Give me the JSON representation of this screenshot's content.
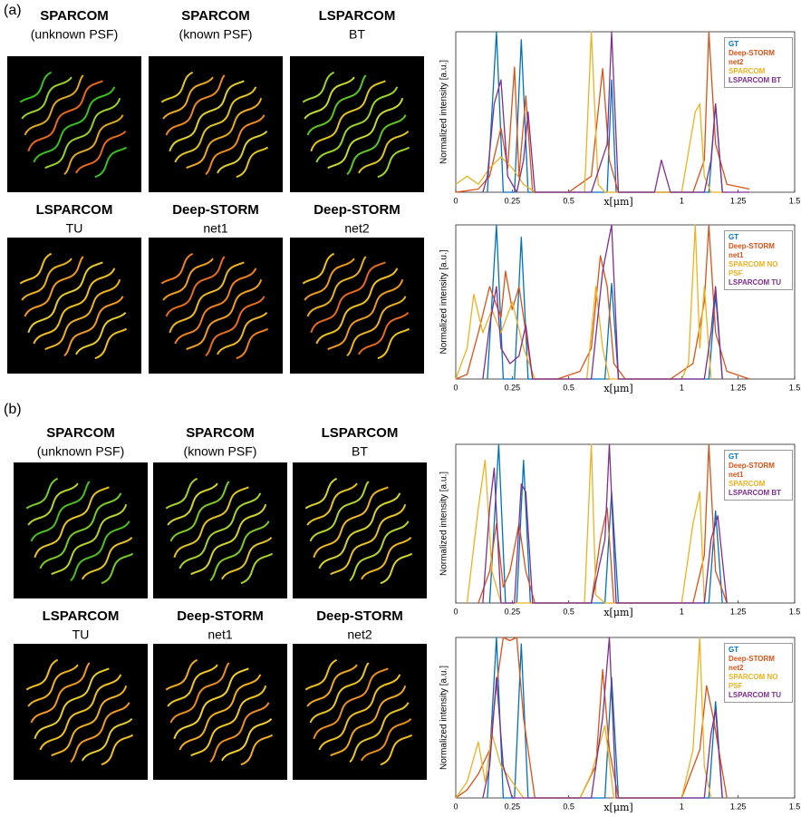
{
  "panels": [
    {
      "label": "(a)",
      "images": [
        {
          "name": "SPARCOM",
          "subtitle": "(unknown PSF)"
        },
        {
          "name": "SPARCOM",
          "subtitle": "(known PSF)"
        },
        {
          "name": "LSPARCOM",
          "subtitle": "BT"
        },
        {
          "name": "LSPARCOM",
          "subtitle": "TU"
        },
        {
          "name": "Deep-STORM",
          "subtitle": "net1"
        },
        {
          "name": "Deep-STORM",
          "subtitle": "net2"
        }
      ]
    },
    {
      "label": "(b)",
      "images": [
        {
          "name": "SPARCOM",
          "subtitle": "(unknown PSF)"
        },
        {
          "name": "SPARCOM",
          "subtitle": "(known PSF)"
        },
        {
          "name": "LSPARCOM",
          "subtitle": "BT"
        },
        {
          "name": "LSPARCOM",
          "subtitle": "TU"
        },
        {
          "name": "Deep-STORM",
          "subtitle": "net1"
        },
        {
          "name": "Deep-STORM",
          "subtitle": "net2"
        }
      ]
    }
  ],
  "chart_data": [
    {
      "type": "line",
      "ylabel": "Normalized intensity [a.u.]",
      "xlabel": "x[μm]",
      "xlim": [
        0,
        1.5
      ],
      "ylim": [
        0,
        1
      ],
      "xticks": [
        0,
        0.25,
        0.5,
        1,
        1.25,
        1.5
      ],
      "legend": "upper right",
      "series": [
        {
          "name": "GT",
          "color": "#0072bd",
          "x": [
            0.14,
            0.18,
            0.21,
            0.26,
            0.29,
            0.32,
            0.67,
            0.69,
            0.71,
            1.12,
            1.15,
            1.18
          ],
          "values": [
            0,
            1,
            0,
            0,
            0.95,
            0,
            0,
            0.7,
            0,
            0,
            0.55,
            0
          ]
        },
        {
          "name": "Deep-STORM net2",
          "color": "#d95319",
          "x": [
            0,
            0.1,
            0.15,
            0.2,
            0.23,
            0.26,
            0.28,
            0.31,
            0.34,
            0.5,
            0.6,
            0.65,
            0.68,
            0.72,
            1.05,
            1.1,
            1.12,
            1.15,
            1.2,
            1.3
          ],
          "values": [
            0,
            0.02,
            0.1,
            0.4,
            0.15,
            0.78,
            0.1,
            0.6,
            0,
            0,
            0.1,
            0.77,
            0.2,
            0,
            0,
            0.2,
            1,
            0.3,
            0.05,
            0.02
          ]
        },
        {
          "name": "SPARCOM",
          "color": "#edb120",
          "x": [
            0,
            0.05,
            0.1,
            0.15,
            0.2,
            0.25,
            0.3,
            0.35,
            0.5,
            0.57,
            0.6,
            0.63,
            0.66,
            0.9,
            1.0,
            1.06,
            1.08,
            1.1,
            1.13,
            1.2
          ],
          "values": [
            0.05,
            0.1,
            0.05,
            0.15,
            0.22,
            0.15,
            0.05,
            0,
            0,
            0,
            1,
            0.05,
            0,
            0,
            0,
            0.5,
            0.55,
            0.1,
            0,
            0
          ]
        },
        {
          "name": "LSPARCOM BT",
          "color": "#7e2f8e",
          "x": [
            0.12,
            0.14,
            0.17,
            0.2,
            0.23,
            0.27,
            0.3,
            0.32,
            0.35,
            0.6,
            0.67,
            0.69,
            0.72,
            0.85,
            0.88,
            0.91,
            0.95,
            1.1,
            1.13,
            1.15,
            1.18,
            1.3
          ],
          "values": [
            0,
            0.1,
            0.55,
            0.7,
            0.1,
            0,
            0.2,
            0.5,
            0,
            0,
            0.3,
            1,
            0,
            0,
            0,
            0.2,
            0,
            0,
            0.2,
            0.55,
            0,
            0
          ]
        }
      ]
    },
    {
      "type": "line",
      "ylabel": "Normalized intensity [a.u.]",
      "xlabel": "x[μm]",
      "xlim": [
        0,
        1.5
      ],
      "ylim": [
        0,
        1
      ],
      "xticks": [
        0,
        0.25,
        0.5,
        1,
        1.25,
        1.5
      ],
      "legend": "upper right",
      "series": [
        {
          "name": "GT",
          "color": "#0072bd",
          "x": [
            0.14,
            0.18,
            0.21,
            0.26,
            0.29,
            0.32,
            0.66,
            0.69,
            0.72,
            1.12,
            1.15,
            1.18
          ],
          "values": [
            0,
            1,
            0,
            0,
            0.92,
            0,
            0,
            0.62,
            0,
            0,
            0.55,
            0
          ]
        },
        {
          "name": "Deep-STORM net1",
          "color": "#d95319",
          "x": [
            0,
            0.05,
            0.1,
            0.15,
            0.2,
            0.22,
            0.25,
            0.28,
            0.31,
            0.34,
            0.45,
            0.55,
            0.6,
            0.64,
            0.67,
            0.7,
            0.75,
            0.95,
            1.05,
            1.1,
            1.12,
            1.15,
            1.2,
            1.3
          ],
          "values": [
            0,
            0.03,
            0.3,
            0.6,
            0.4,
            0.7,
            0.45,
            0.6,
            0.3,
            0,
            0,
            0.05,
            0.2,
            0.8,
            0.6,
            0.1,
            0,
            0,
            0.1,
            0.5,
            1,
            0.3,
            0.05,
            0
          ]
        },
        {
          "name": "SPARCOM NO PSF",
          "color": "#edb120",
          "x": [
            0,
            0.05,
            0.08,
            0.12,
            0.16,
            0.2,
            0.25,
            0.3,
            0.35,
            0.5,
            0.58,
            0.62,
            0.65,
            0.68,
            1.0,
            1.03,
            1.06,
            1.08,
            1.1,
            1.13
          ],
          "values": [
            0,
            0.2,
            0.55,
            0.3,
            0.45,
            0.3,
            0.5,
            0.2,
            0,
            0,
            0,
            0.6,
            0.2,
            0,
            0,
            0.1,
            1,
            0.2,
            0.6,
            0
          ]
        },
        {
          "name": "LSPARCOM TU",
          "color": "#7e2f8e",
          "x": [
            0.12,
            0.15,
            0.18,
            0.2,
            0.24,
            0.28,
            0.31,
            0.34,
            0.6,
            0.65,
            0.69,
            0.72,
            1.1,
            1.13,
            1.15,
            1.18
          ],
          "values": [
            0,
            0.35,
            0.6,
            0.2,
            0.1,
            0.15,
            0.35,
            0,
            0,
            0.7,
            1,
            0,
            0,
            0.3,
            0.6,
            0
          ]
        }
      ]
    },
    {
      "type": "line",
      "ylabel": "Normalized intensity [a.u.]",
      "xlabel": "x[μm]",
      "xlim": [
        0,
        1.5
      ],
      "ylim": [
        0,
        1
      ],
      "xticks": [
        0,
        0.25,
        0.5,
        1,
        1.25,
        1.5
      ],
      "legend": "upper right",
      "series": [
        {
          "name": "GT",
          "color": "#0072bd",
          "x": [
            0.15,
            0.19,
            0.22,
            0.27,
            0.3,
            0.33,
            0.66,
            0.69,
            0.72,
            1.12,
            1.15,
            1.18
          ],
          "values": [
            0,
            1,
            0,
            0,
            0.9,
            0,
            0,
            0.7,
            0,
            0,
            0.58,
            0
          ]
        },
        {
          "name": "Deep-STORM net1",
          "color": "#d95319",
          "x": [
            0.1,
            0.15,
            0.18,
            0.21,
            0.24,
            0.28,
            0.31,
            0.35,
            0.6,
            0.64,
            0.67,
            0.7,
            1.05,
            1.1,
            1.12,
            1.15,
            1.2
          ],
          "values": [
            0,
            0.2,
            0.5,
            0.1,
            0.2,
            0.5,
            0.2,
            0,
            0,
            0.4,
            0.6,
            0,
            0,
            0.3,
            1,
            0.2,
            0
          ]
        },
        {
          "name": "SPARCOM",
          "color": "#edb120",
          "x": [
            0.05,
            0.1,
            0.13,
            0.16,
            0.2,
            0.25,
            0.5,
            0.57,
            0.6,
            0.62,
            0.66,
            1.0,
            1.05,
            1.08,
            1.1
          ],
          "values": [
            0,
            0.6,
            0.9,
            0.2,
            0,
            0,
            0,
            0,
            1,
            0.05,
            0,
            0,
            0.5,
            0.7,
            0
          ]
        },
        {
          "name": "LSPARCOM BT",
          "color": "#7e2f8e",
          "x": [
            0.12,
            0.15,
            0.17,
            0.2,
            0.26,
            0.29,
            0.31,
            0.34,
            0.6,
            0.66,
            0.68,
            0.71,
            1.1,
            1.13,
            1.16,
            1.2
          ],
          "values": [
            0,
            0.6,
            0.85,
            0,
            0,
            0.75,
            0.7,
            0,
            0,
            0.4,
            1,
            0,
            0,
            0.4,
            0.55,
            0
          ]
        }
      ]
    },
    {
      "type": "line",
      "ylabel": "Normalized intensity [a.u.]",
      "xlabel": "x[μm]",
      "xlim": [
        0,
        1.5
      ],
      "ylim": [
        0,
        1
      ],
      "xticks": [
        0,
        0.25,
        0.5,
        1,
        1.25,
        1.5
      ],
      "legend": "upper right",
      "series": [
        {
          "name": "GT",
          "color": "#0072bd",
          "x": [
            0.14,
            0.18,
            0.21,
            0.26,
            0.29,
            0.32,
            0.66,
            0.69,
            0.72,
            1.12,
            1.15,
            1.18
          ],
          "values": [
            0,
            1,
            0,
            0,
            0.96,
            0,
            0,
            0.75,
            0,
            0,
            0.6,
            0
          ]
        },
        {
          "name": "Deep-STORM net2",
          "color": "#d95319",
          "x": [
            0,
            0.05,
            0.1,
            0.15,
            0.18,
            0.21,
            0.24,
            0.27,
            0.3,
            0.35,
            0.55,
            0.62,
            0.65,
            0.68,
            0.72,
            1.0,
            1.08,
            1.11,
            1.14,
            1.2
          ],
          "values": [
            0,
            0.05,
            0.15,
            0.3,
            0.7,
            1,
            0.98,
            1,
            0.5,
            0,
            0,
            0.2,
            0.8,
            0.3,
            0,
            0,
            0.3,
            0.7,
            0.5,
            0
          ]
        },
        {
          "name": "SPARCOM NO PSF",
          "color": "#edb120",
          "x": [
            0,
            0.05,
            0.1,
            0.13,
            0.16,
            0.2,
            0.25,
            0.3,
            0.55,
            0.6,
            0.63,
            0.66,
            0.7,
            1.0,
            1.05,
            1.08,
            1.1,
            1.13
          ],
          "values": [
            0,
            0.1,
            0.35,
            0.1,
            0.4,
            0.2,
            0.1,
            0,
            0,
            0.15,
            0.3,
            0.45,
            0,
            0,
            0.3,
            1,
            0.2,
            0
          ]
        },
        {
          "name": "LSPARCOM TU",
          "color": "#7e2f8e",
          "x": [
            0.12,
            0.15,
            0.18,
            0.21,
            0.25,
            0.6,
            0.65,
            0.68,
            0.71,
            1.1,
            1.13,
            1.15,
            1.18
          ],
          "values": [
            0,
            0.2,
            0.75,
            0.2,
            0,
            0,
            0.5,
            1,
            0,
            0,
            0.4,
            0.55,
            0
          ]
        }
      ]
    }
  ]
}
